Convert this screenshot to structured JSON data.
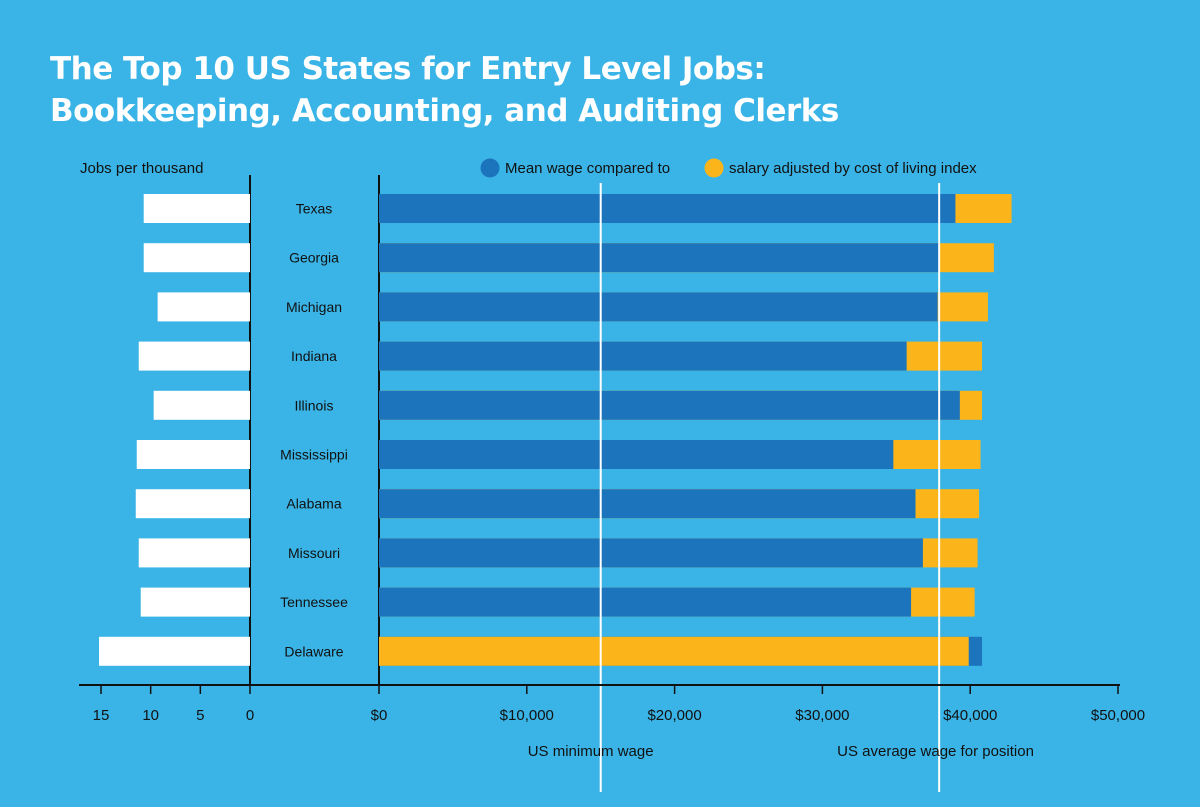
{
  "title_lines": [
    "The Top 10 US States for Entry Level Jobs:",
    "Bookkeeping, Accounting, and Auditing Clerks"
  ],
  "colors": {
    "background": "#3ab4e6",
    "mean_wage": "#1c75bc",
    "adjusted_salary": "#fbb419",
    "jobs_bar": "#ffffff"
  },
  "chart_data": [
    {
      "type": "bar",
      "orientation": "horizontal",
      "xlabel": "Jobs per thousand",
      "x_reversed": true,
      "xlim": [
        0,
        17
      ],
      "xticks": [
        "15",
        "10",
        "5",
        "0"
      ],
      "xtick_values": [
        15,
        10,
        5,
        0
      ],
      "categories": [
        "Texas",
        "Georgia",
        "Michigan",
        "Indiana",
        "Illinois",
        "Mississippi",
        "Alabama",
        "Missouri",
        "Tennessee",
        "Delaware"
      ],
      "values": [
        10.7,
        10.7,
        9.3,
        11.2,
        9.7,
        11.4,
        11.5,
        11.2,
        11.0,
        15.2
      ]
    },
    {
      "type": "bar",
      "orientation": "horizontal",
      "legend": {
        "mean_label": "Mean wage compared to",
        "adjusted_label": "salary adjusted by cost of living index",
        "placement": "top"
      },
      "xlim": [
        0,
        50000
      ],
      "xticks": [
        "$0",
        "$10,000",
        "$20,000",
        "$30,000",
        "$40,000",
        "$50,000"
      ],
      "xtick_values": [
        0,
        10000,
        20000,
        30000,
        40000,
        50000
      ],
      "categories": [
        "Texas",
        "Georgia",
        "Michigan",
        "Indiana",
        "Illinois",
        "Mississippi",
        "Alabama",
        "Missouri",
        "Tennessee",
        "Delaware"
      ],
      "series": [
        {
          "name": "Mean wage",
          "values": [
            39000,
            37900,
            37800,
            35700,
            39300,
            34800,
            36300,
            36800,
            36000,
            40800
          ]
        },
        {
          "name": "Salary adjusted by cost of living index",
          "values": [
            42800,
            41600,
            41200,
            40800,
            40800,
            40700,
            40600,
            40500,
            40300,
            39900
          ]
        }
      ],
      "reference_lines": [
        {
          "label": "US minimum wage",
          "value": 15000
        },
        {
          "label": "US average wage for position",
          "value": 37900
        }
      ]
    }
  ]
}
